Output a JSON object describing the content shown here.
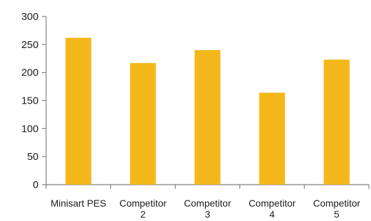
{
  "chart_data": {
    "type": "bar",
    "categories": [
      [
        "Minisart PES"
      ],
      [
        "Competitor",
        "2"
      ],
      [
        "Competitor",
        "3"
      ],
      [
        "Competitor",
        "4"
      ],
      [
        "Competitor",
        "5"
      ]
    ],
    "values": [
      262,
      217,
      240,
      164,
      223
    ],
    "title": "",
    "xlabel": "",
    "ylabel": "",
    "ylim": [
      0,
      300
    ],
    "yticks": [
      0,
      50,
      100,
      150,
      200,
      250,
      300
    ],
    "bar_color": "#F5B81C",
    "axis_color": "#7f7f7f",
    "grid": false,
    "legend": "none"
  }
}
